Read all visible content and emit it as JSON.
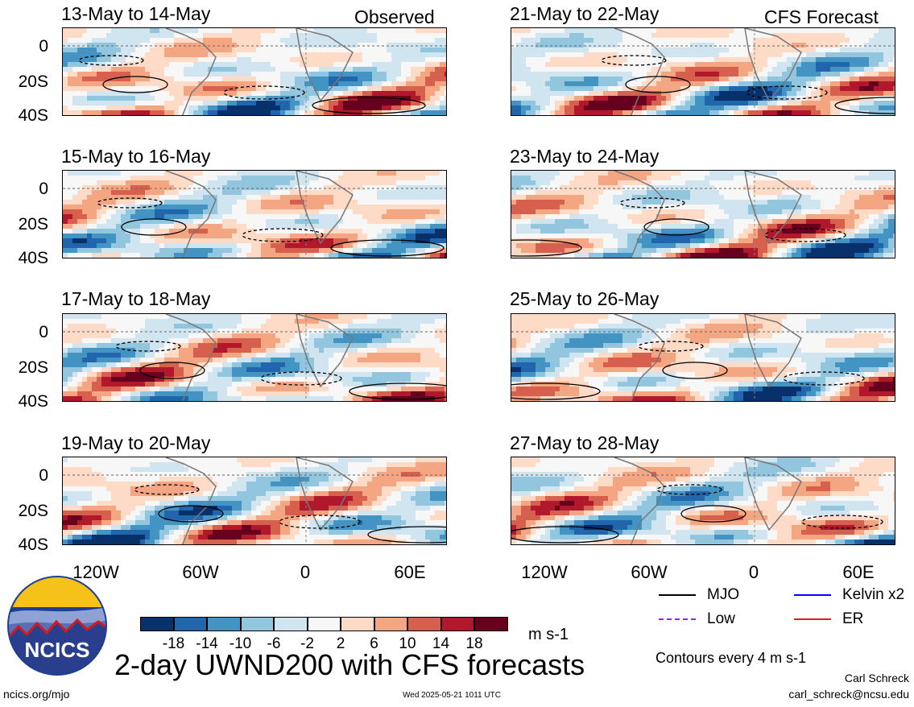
{
  "panels": [
    {
      "title": "13-May to 14-May",
      "tag": "Observed"
    },
    {
      "title": "15-May to 16-May",
      "tag": ""
    },
    {
      "title": "17-May to 18-May",
      "tag": ""
    },
    {
      "title": "19-May to 20-May",
      "tag": ""
    },
    {
      "title": "21-May to 22-May",
      "tag": "CFS Forecast"
    },
    {
      "title": "23-May to 24-May",
      "tag": ""
    },
    {
      "title": "25-May to 26-May",
      "tag": ""
    },
    {
      "title": "27-May to 28-May",
      "tag": ""
    }
  ],
  "y_ticks": [
    "0",
    "20S",
    "40S"
  ],
  "x_ticks": [
    "120W",
    "60W",
    "0",
    "60E"
  ],
  "colorbar": {
    "colors": [
      "#08306b",
      "#2166ac",
      "#4393c3",
      "#92c5de",
      "#d1e5f0",
      "#f7f7f7",
      "#fddbc7",
      "#f4a582",
      "#d6604d",
      "#b2182b",
      "#67001f"
    ],
    "labels": [
      "-18",
      "-14",
      "-10",
      "-6",
      "-2",
      "2",
      "6",
      "10",
      "14",
      "18"
    ],
    "units": "m s-1"
  },
  "legend": {
    "items": [
      {
        "label": "MJO",
        "color": "#000000"
      },
      {
        "label": "Kelvin x2",
        "color": "#0000ff"
      },
      {
        "label": "Low",
        "color": "#a020f0"
      },
      {
        "label": "ER",
        "color": "#e41a1c"
      }
    ],
    "contours_note": "Contours every 4 m s-1"
  },
  "main_title": "2-day UWND200 with CFS forecasts",
  "logo_text": "NCICS",
  "footer": {
    "url": "ncics.org/mjo",
    "timestamp": "Wed 2025-05-21 1011 UTC",
    "author": "Carl Schreck",
    "email": "carl_schreck@ncsu.edu"
  }
}
